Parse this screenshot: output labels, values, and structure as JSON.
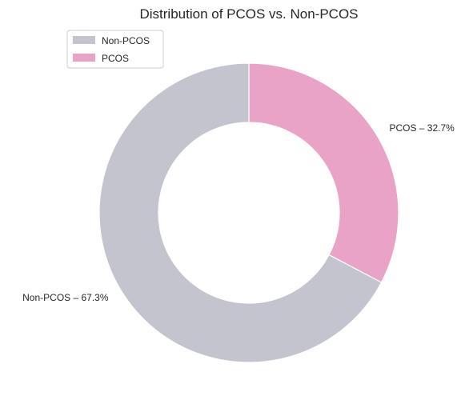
{
  "chart_data": {
    "type": "pie",
    "title": "Distribution of PCOS vs. Non-PCOS",
    "donut": true,
    "slices": [
      {
        "name": "PCOS",
        "value": 32.7,
        "label": "PCOS – 32.7%",
        "color": "#e8a3c6"
      },
      {
        "name": "Non-PCOS",
        "value": 67.3,
        "label": "Non-PCOS – 67.3%",
        "color": "#c4c4cf"
      }
    ],
    "legend": {
      "placement": "top-left",
      "entries": [
        {
          "label": "Non-PCOS",
          "color": "#c4c4cf"
        },
        {
          "label": "PCOS",
          "color": "#e8a3c6"
        }
      ]
    }
  }
}
